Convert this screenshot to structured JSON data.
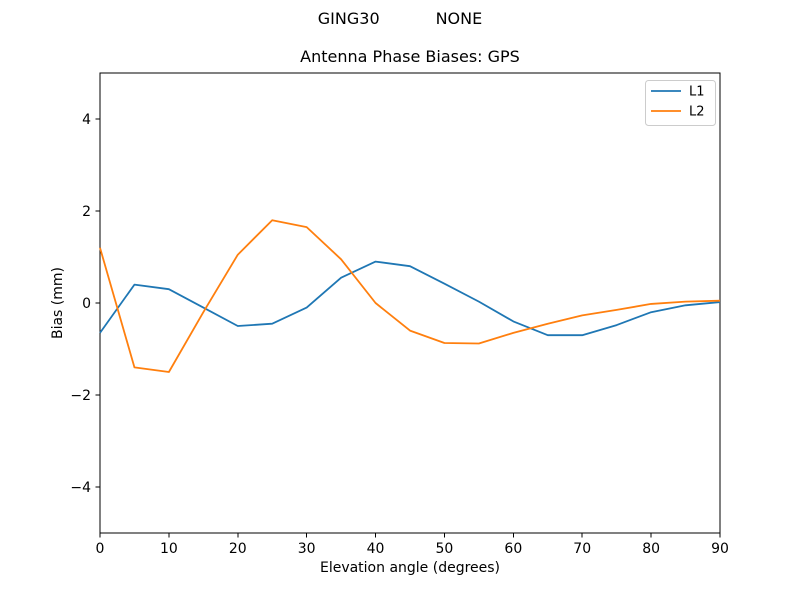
{
  "figure": {
    "suptitle": "GING30           NONE",
    "background": "#ffffff"
  },
  "chart_data": {
    "type": "line",
    "title": "Antenna Phase Biases: GPS",
    "xlabel": "Elevation angle (degrees)",
    "ylabel": "Bias (mm)",
    "xlim": [
      0,
      90
    ],
    "ylim": [
      -5,
      5
    ],
    "grid": false,
    "xticks": [
      0,
      10,
      20,
      30,
      40,
      50,
      60,
      70,
      80,
      90
    ],
    "xtick_labels": [
      "0",
      "10",
      "20",
      "30",
      "40",
      "50",
      "60",
      "70",
      "80",
      "90"
    ],
    "yticks": [
      -4,
      -2,
      0,
      2,
      4
    ],
    "ytick_labels": [
      "−4",
      "−2",
      "0",
      "2",
      "4"
    ],
    "legend": {
      "position": "upper right",
      "entries": [
        "L1",
        "L2"
      ]
    },
    "x": [
      0,
      5,
      10,
      15,
      20,
      25,
      30,
      35,
      40,
      45,
      50,
      55,
      60,
      65,
      70,
      75,
      80,
      85,
      90
    ],
    "series": [
      {
        "name": "L1",
        "color": "#1f77b4",
        "values": [
          -0.65,
          0.4,
          0.3,
          -0.1,
          -0.5,
          -0.45,
          -0.1,
          0.55,
          0.9,
          0.8,
          0.42,
          0.03,
          -0.4,
          -0.7,
          -0.7,
          -0.48,
          -0.2,
          -0.05,
          0.02
        ]
      },
      {
        "name": "L2",
        "color": "#ff7f0e",
        "values": [
          1.2,
          -1.4,
          -1.5,
          -0.2,
          1.05,
          1.8,
          1.65,
          0.95,
          0.0,
          -0.6,
          -0.87,
          -0.88,
          -0.65,
          -0.45,
          -0.27,
          -0.15,
          -0.02,
          0.03,
          0.05
        ]
      }
    ],
    "colors": {
      "spine": "#000000",
      "legend_border": "#cccccc",
      "background": "#ffffff"
    }
  }
}
